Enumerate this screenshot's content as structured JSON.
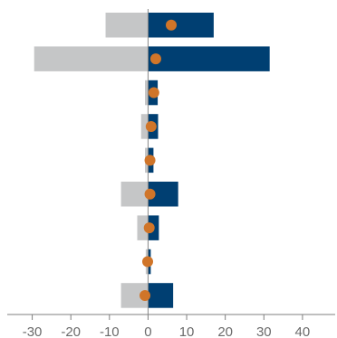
{
  "chart_data": {
    "type": "bar",
    "orientation": "horizontal",
    "stacking": "diverging",
    "xlim": [
      -36,
      48
    ],
    "xticks": [
      -30,
      -20,
      -10,
      0,
      10,
      20,
      30,
      40
    ],
    "xticklabels": [
      "-30",
      "-20",
      "-10",
      "0",
      "10",
      "20",
      "30",
      "40"
    ],
    "grid": false,
    "series": [
      {
        "type": "bar",
        "color": "#c5c6c7",
        "values": [
          -11,
          -29.5,
          -0.8,
          -1.8,
          -0.8,
          -7,
          -2.8,
          -0.6,
          -7
        ]
      },
      {
        "type": "bar",
        "color": "#003f72",
        "values": [
          17,
          31.5,
          2.5,
          2.6,
          1.4,
          7.8,
          2.8,
          0.7,
          6.5
        ]
      },
      {
        "type": "scatter",
        "marker": "circle",
        "color": "#d07529",
        "values": [
          6,
          2,
          1.5,
          0.8,
          0.5,
          0.5,
          0.3,
          -0.1,
          -0.8
        ]
      }
    ]
  }
}
